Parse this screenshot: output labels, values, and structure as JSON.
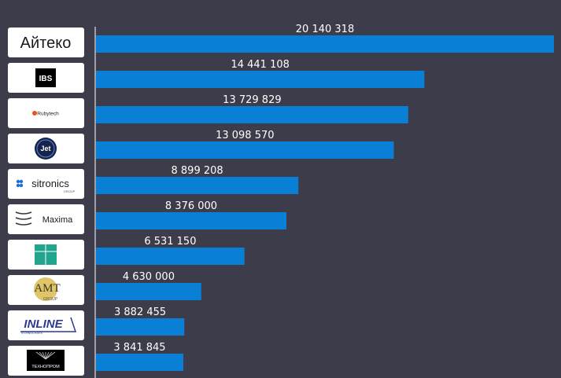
{
  "chart_data": {
    "type": "bar",
    "orientation": "horizontal",
    "title": "",
    "xlabel": "",
    "ylabel": "",
    "categories": [
      "Айтеко",
      "IBS",
      "Rubytech",
      "Jet",
      "sitronics",
      "Maxima",
      "Ланит-Терком",
      "AMT Group",
      "Inline Technologies",
      "Технопром"
    ],
    "values": [
      20140318,
      14441108,
      13729829,
      13098570,
      8899208,
      8376000,
      6531150,
      4630000,
      3882455,
      3841845
    ],
    "value_labels": [
      "20 140 318",
      "14 441 108",
      "13 729 829",
      "13 098 570",
      "8 899 208",
      "8 376 000",
      "6 531 150",
      "4 630 000",
      "3 882 455",
      "3 841 845"
    ],
    "xlim": [
      0,
      20140318
    ],
    "grid": false,
    "legend": "none",
    "bar_color": "#0a7fd6",
    "background": "#3d3c4a"
  },
  "logos": [
    {
      "name": "aiteko-logo",
      "text": "Айтеко",
      "color": "#1a1a1a"
    },
    {
      "name": "ibs-logo",
      "text": "IBS",
      "color": "#000000"
    },
    {
      "name": "rubytech-logo",
      "text": "Rubytech",
      "color": "#e8541c"
    },
    {
      "name": "jet-logo",
      "text": "Jet",
      "color": "#16234a"
    },
    {
      "name": "sitronics-logo",
      "text": "sitronics",
      "subtext": "GROUP",
      "color": "#1c1c1c"
    },
    {
      "name": "maxima-logo",
      "text": "Maxima",
      "color": "#1a1a1a"
    },
    {
      "name": "lanit-logo",
      "text": "",
      "color": "#22a58f"
    },
    {
      "name": "amt-logo",
      "text": "AMT",
      "subtext": "GROUP",
      "color": "#3d3320"
    },
    {
      "name": "inline-logo",
      "text": "INLINE",
      "subtext": "TECHNOLOGIES",
      "color": "#2b3a8f"
    },
    {
      "name": "technoprom-logo",
      "text": "ТЕХНОПРОМ",
      "color": "#000000"
    }
  ]
}
